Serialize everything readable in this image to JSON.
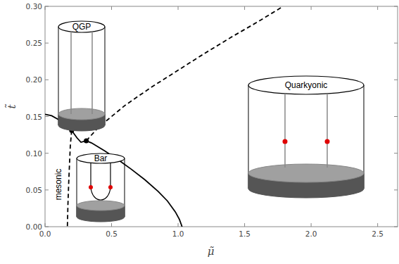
{
  "chart_data": {
    "type": "line",
    "x_label": "μ̃",
    "y_label": "t̃",
    "xlim": [
      0,
      2.65
    ],
    "ylim": [
      0,
      0.3
    ],
    "xticks": [
      {
        "value": 0,
        "label": "0.0"
      },
      {
        "value": 0.5,
        "label": "0.5"
      },
      {
        "value": 1.0,
        "label": "1.0"
      },
      {
        "value": 1.5,
        "label": "1.5"
      },
      {
        "value": 2.0,
        "label": "2.0"
      },
      {
        "value": 2.5,
        "label": "2.5"
      }
    ],
    "yticks": [
      {
        "value": 0,
        "label": "0.00"
      },
      {
        "value": 0.05,
        "label": "0.05"
      },
      {
        "value": 0.1,
        "label": "0.10"
      },
      {
        "value": 0.15,
        "label": "0.15"
      },
      {
        "value": 0.2,
        "label": "0.20"
      },
      {
        "value": 0.25,
        "label": "0.25"
      },
      {
        "value": 0.3,
        "label": "0.30"
      }
    ],
    "grid": false,
    "series": [
      {
        "type": "line",
        "color": "#000000",
        "line_style": "solid",
        "x": [
          0,
          0.05,
          0.1,
          0.15,
          0.2,
          0.24,
          0.27,
          0.31,
          0.35,
          0.45,
          0.55,
          0.65,
          0.75,
          0.85,
          0.92,
          0.98,
          1.01,
          1.03
        ],
        "values": [
          0.153,
          0.151,
          0.146,
          0.139,
          0.131,
          0.121,
          0.115,
          0.117,
          0.114,
          0.103,
          0.091,
          0.078,
          0.064,
          0.048,
          0.035,
          0.02,
          0.01,
          0
        ]
      },
      {
        "type": "line",
        "color": "#000000",
        "line_style": "dashed",
        "x": [
          0.2,
          0.19,
          0.185,
          0.178,
          0.172,
          0.168
        ],
        "values": [
          0.131,
          0.11,
          0.09,
          0.06,
          0.03,
          0
        ]
      },
      {
        "type": "line",
        "color": "#000000",
        "line_style": "dashed",
        "x": [
          0.31,
          0.4,
          0.6,
          0.8,
          1.0,
          1.2,
          1.4,
          1.6,
          1.79
        ],
        "values": [
          0.117,
          0.135,
          0.165,
          0.19,
          0.213,
          0.236,
          0.258,
          0.279,
          0.3
        ]
      },
      {
        "type": "scatter",
        "color": "#000000",
        "marker": "circle",
        "x": [
          0.2,
          0.31
        ],
        "values": [
          0.131,
          0.117
        ]
      }
    ],
    "annotations": [
      "QGP",
      "Bar",
      "Quarkyonic",
      "mesonic"
    ]
  }
}
